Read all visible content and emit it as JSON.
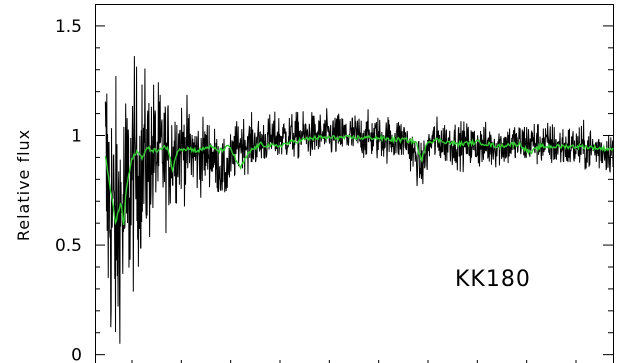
{
  "chart_data": {
    "type": "line",
    "title": "",
    "xlabel": "",
    "ylabel": "Relative flux",
    "ylim": [
      -0.07,
      1.6
    ],
    "yticks": [
      0,
      0.5,
      1,
      1.5
    ],
    "ytick_labels": [
      "0",
      "0.5",
      "1",
      "1.5"
    ],
    "xtick_count": 21,
    "grid": false,
    "legend": "none",
    "annotation": "KK180",
    "series": [
      {
        "color": "#000000",
        "x": [
          0,
          0.02,
          0.04,
          0.06,
          0.08,
          0.1,
          0.12,
          0.14,
          0.16,
          0.18,
          0.2,
          0.22,
          0.25,
          0.28,
          0.3,
          0.35,
          0.4,
          0.45,
          0.5,
          0.55,
          0.6,
          0.63,
          0.65,
          0.7,
          0.75,
          0.8,
          0.85,
          0.9,
          0.95,
          1.0
        ],
        "y": [
          0.85,
          0.8,
          0.55,
          0.7,
          0.85,
          0.88,
          0.92,
          0.9,
          0.95,
          0.94,
          0.9,
          0.93,
          0.82,
          0.97,
          0.96,
          0.99,
          1.0,
          1.0,
          1.0,
          0.99,
          0.98,
          0.85,
          0.98,
          0.96,
          0.95,
          0.96,
          0.97,
          0.95,
          0.94,
          0.93
        ]
      },
      {
        "color": "#33cc33",
        "x": [
          0,
          0.01,
          0.02,
          0.03,
          0.04,
          0.05,
          0.055,
          0.06,
          0.07,
          0.08,
          0.09,
          0.1,
          0.12,
          0.14,
          0.15,
          0.16,
          0.18,
          0.2,
          0.22,
          0.24,
          0.26,
          0.28,
          0.3,
          0.32,
          0.35,
          0.38,
          0.4,
          0.43,
          0.46,
          0.5,
          0.54,
          0.58,
          0.6,
          0.62,
          0.63,
          0.64,
          0.66,
          0.7,
          0.74,
          0.78,
          0.8,
          0.82,
          0.84,
          0.86,
          0.9,
          0.94,
          0.98,
          1.0
        ],
        "y": [
          0.94,
          0.92,
          0.9,
          0.75,
          0.6,
          0.7,
          0.58,
          0.75,
          0.88,
          0.93,
          0.9,
          0.94,
          0.93,
          0.95,
          0.84,
          0.94,
          0.94,
          0.93,
          0.95,
          0.93,
          0.95,
          0.85,
          0.93,
          0.96,
          0.95,
          0.97,
          0.98,
          0.99,
          0.99,
          0.99,
          0.99,
          0.98,
          0.98,
          0.97,
          0.88,
          0.97,
          0.98,
          0.96,
          0.97,
          0.95,
          0.96,
          0.96,
          0.92,
          0.95,
          0.95,
          0.95,
          0.94,
          0.94
        ]
      }
    ]
  }
}
